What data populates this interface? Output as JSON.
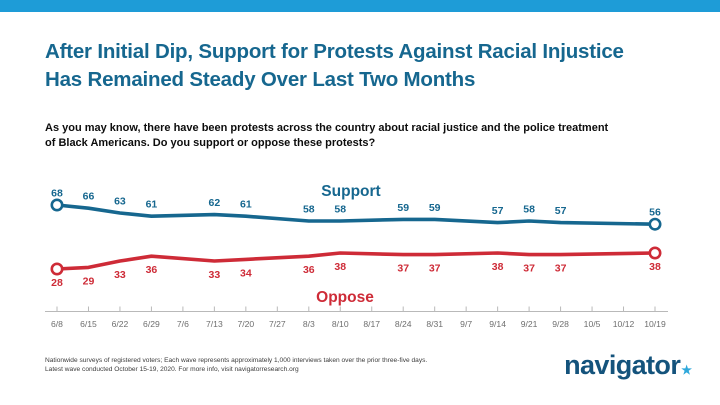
{
  "accent": {
    "topbar_color": "#1E9CD7"
  },
  "header": {
    "title_line1": "After Initial Dip, Support for Protests Against Racial Injustice",
    "title_line2": "Has Remained Steady Over Last Two Months"
  },
  "question": {
    "line1": "As you may know, there have been protests across the country about racial justice and the police treatment",
    "line2": "of Black Americans. Do you support or oppose these protests?"
  },
  "chart_data": {
    "type": "line",
    "title": "",
    "xlabel": "",
    "ylabel": "",
    "x_tick_labels": [
      "6/8",
      "6/15",
      "6/22",
      "6/29",
      "7/6",
      "7/13",
      "7/20",
      "7/27",
      "8/3",
      "8/10",
      "8/17",
      "8/24",
      "8/31",
      "9/7",
      "9/14",
      "9/21",
      "9/28",
      "10/5",
      "10/12",
      "10/19"
    ],
    "series": [
      {
        "name": "Support",
        "color": "#16678F",
        "tick_index": [
          0,
          1,
          2,
          3,
          5,
          6,
          8,
          9,
          11,
          12,
          14,
          15,
          16,
          19
        ],
        "values": [
          68,
          66,
          63,
          61,
          62,
          61,
          58,
          58,
          59,
          59,
          57,
          58,
          57,
          56
        ]
      },
      {
        "name": "Oppose",
        "color": "#CE2B37",
        "tick_index": [
          0,
          1,
          2,
          3,
          5,
          6,
          8,
          9,
          11,
          12,
          14,
          15,
          16,
          19
        ],
        "values": [
          28,
          29,
          33,
          36,
          33,
          34,
          36,
          38,
          37,
          37,
          38,
          37,
          37,
          38
        ]
      }
    ],
    "ylim": [
      20,
      78
    ],
    "grid": false,
    "legend_position": "inline labels: Support above blue line, Oppose below red line",
    "axis_line_color": "#B9B9B9",
    "tick_label_color": "#6E6E6E",
    "markers": "open circle on first and last point of each series",
    "data_labels": "every point labeled with its value in series color"
  },
  "footnote": {
    "line1": "Nationwide surveys of registered voters; Each wave represents approximately 1,000 interviews taken over the prior three-five days.",
    "line2": "Latest wave conducted October 15-19, 2020. For more info, visit navigatorresearch.org"
  },
  "logo": {
    "text": "navigator",
    "star": "★"
  }
}
